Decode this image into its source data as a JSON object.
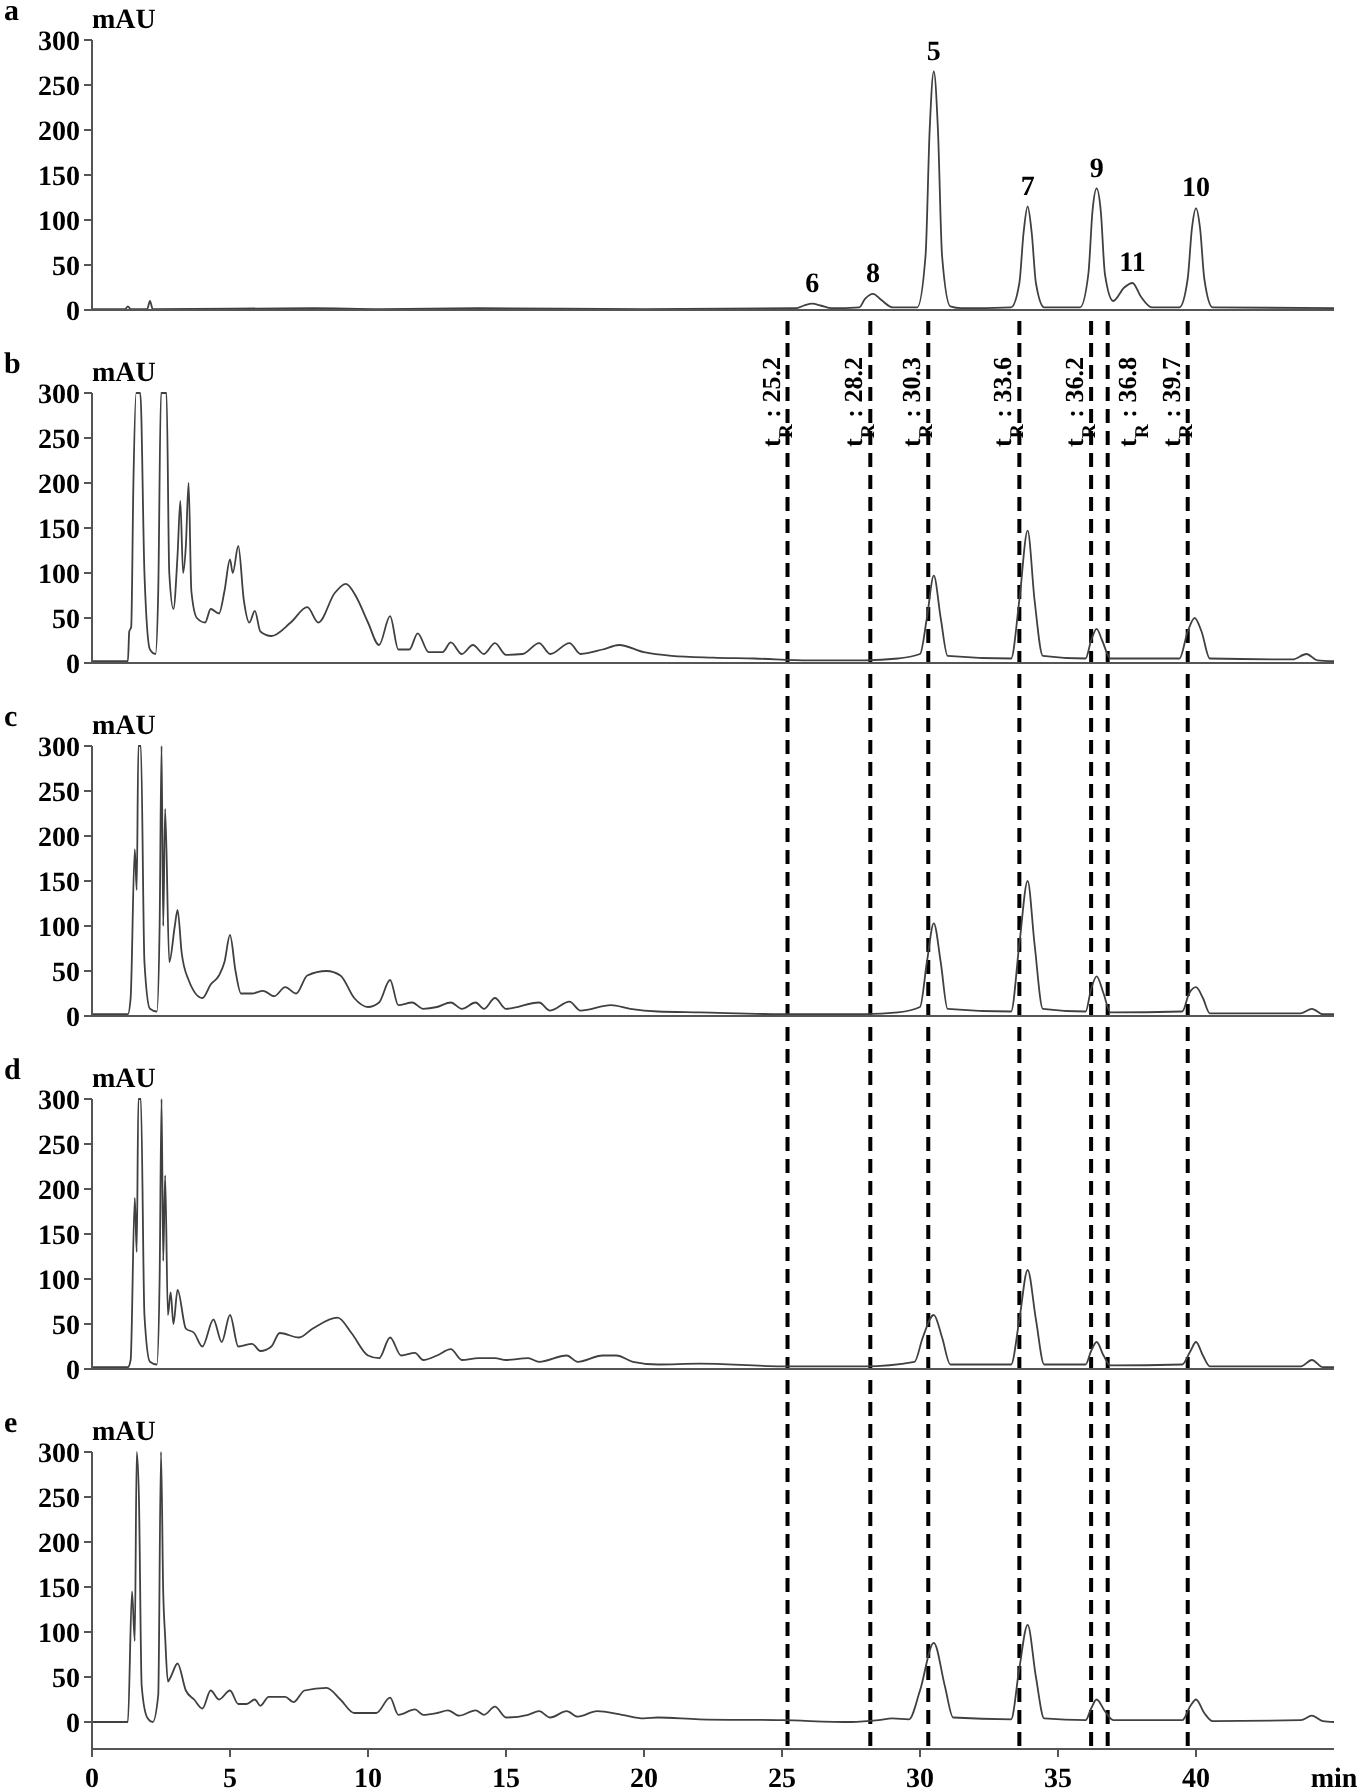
{
  "chart_data": [
    {
      "type": "line",
      "title": "a",
      "ylabel": "mAU",
      "xlim": [
        0,
        45
      ],
      "ylim": [
        0,
        300
      ],
      "yticks": [
        0,
        50,
        100,
        150,
        200,
        250,
        300
      ],
      "tick_labels": "y",
      "x": [
        0,
        1.2,
        1.3,
        1.4,
        2.0,
        2.1,
        2.2,
        8,
        10.5,
        14,
        20,
        25.5,
        25.8,
        26.1,
        26.4,
        26.8,
        27.8,
        28.0,
        28.3,
        28.6,
        29.0,
        29.9,
        30.2,
        30.35,
        30.5,
        30.65,
        30.8,
        31.1,
        31.5,
        33.3,
        33.6,
        33.75,
        33.9,
        34.05,
        34.2,
        34.5,
        35.8,
        36.1,
        36.25,
        36.4,
        36.55,
        36.7,
        37.0,
        37.4,
        37.7,
        38.0,
        38.4,
        39.4,
        39.7,
        39.85,
        40.0,
        40.15,
        40.3,
        40.6,
        45
      ],
      "series": [
        {
          "color": "#404040",
          "values": [
            1,
            1,
            4,
            1,
            1,
            10,
            1,
            2,
            1,
            2,
            1,
            2,
            5,
            7,
            5,
            2,
            3,
            12,
            18,
            11,
            3,
            3,
            60,
            200,
            265,
            200,
            60,
            4,
            2,
            3,
            30,
            85,
            115,
            85,
            30,
            3,
            3,
            40,
            110,
            135,
            110,
            40,
            10,
            25,
            30,
            15,
            3,
            3,
            35,
            90,
            113,
            90,
            35,
            3,
            2
          ]
        }
      ],
      "annotations": [
        {
          "text": "6",
          "x": 26.1,
          "y": 7
        },
        {
          "text": "8",
          "x": 28.3,
          "y": 18
        },
        {
          "text": "5",
          "x": 30.5,
          "y": 265
        },
        {
          "text": "7",
          "x": 33.9,
          "y": 115
        },
        {
          "text": "9",
          "x": 36.4,
          "y": 135
        },
        {
          "text": "11",
          "x": 37.7,
          "y": 30
        },
        {
          "text": "10",
          "x": 40.0,
          "y": 113
        }
      ]
    },
    {
      "type": "line",
      "title": "b",
      "ylabel": "mAU",
      "xlim": [
        0,
        45
      ],
      "ylim": [
        0,
        300
      ],
      "yticks": [
        0,
        50,
        100,
        150,
        200,
        250,
        300
      ],
      "tick_labels": "y",
      "x": [
        0,
        1.3,
        1.35,
        1.42,
        1.5,
        1.6,
        1.75,
        1.9,
        2.1,
        2.3,
        2.4,
        2.5,
        2.7,
        2.8,
        2.95,
        3.1,
        3.2,
        3.3,
        3.4,
        3.5,
        3.6,
        3.8,
        4.1,
        4.3,
        4.6,
        4.8,
        5.0,
        5.1,
        5.3,
        5.5,
        5.7,
        5.9,
        6.1,
        6.5,
        7.2,
        7.8,
        8.2,
        8.8,
        9.2,
        9.6,
        10.0,
        10.4,
        10.8,
        11.1,
        11.5,
        11.8,
        12.2,
        12.7,
        13.0,
        13.4,
        13.8,
        14.2,
        14.6,
        15.0,
        15.6,
        16.2,
        16.6,
        17.3,
        17.7,
        18.5,
        19.1,
        20,
        21,
        22.5,
        24,
        26,
        28,
        29.2,
        30.0,
        30.25,
        30.5,
        30.75,
        31.0,
        33.3,
        33.6,
        33.9,
        34.15,
        34.45,
        36.0,
        36.2,
        36.4,
        36.6,
        36.9,
        39.4,
        39.7,
        39.95,
        40.2,
        40.5,
        43.5,
        44.0,
        44.4,
        45
      ],
      "series": [
        {
          "color": "#404040",
          "values": [
            2,
            2,
            35,
            40,
            200,
            300,
            300,
            100,
            15,
            10,
            80,
            300,
            300,
            100,
            60,
            120,
            180,
            100,
            130,
            200,
            80,
            50,
            45,
            60,
            55,
            80,
            115,
            100,
            130,
            70,
            45,
            58,
            35,
            30,
            45,
            62,
            45,
            78,
            88,
            72,
            45,
            20,
            52,
            15,
            15,
            33,
            12,
            12,
            23,
            10,
            20,
            10,
            22,
            9,
            10,
            22,
            10,
            22,
            10,
            15,
            20,
            12,
            8,
            6,
            5,
            3,
            3,
            5,
            10,
            50,
            97,
            50,
            8,
            5,
            70,
            147,
            70,
            8,
            5,
            25,
            38,
            25,
            5,
            5,
            35,
            50,
            35,
            5,
            4,
            10,
            3,
            2
          ]
        }
      ],
      "ref_lines": [
        {
          "axis": "x",
          "value": 25.2,
          "label": "t$_{R}$ : 25.2",
          "line_style": "dashed",
          "color": "#000000"
        },
        {
          "axis": "x",
          "value": 28.2,
          "label": "t$_{R}$ : 28.2",
          "line_style": "dashed",
          "color": "#000000"
        },
        {
          "axis": "x",
          "value": 30.3,
          "label": "t$_{R}$ : 30.3",
          "line_style": "dashed",
          "color": "#000000"
        },
        {
          "axis": "x",
          "value": 33.6,
          "label": "t$_{R}$ : 33.6",
          "line_style": "dashed",
          "color": "#000000"
        },
        {
          "axis": "x",
          "value": 36.2,
          "label": "t$_{R}$ : 36.2",
          "line_style": "dashed",
          "color": "#000000"
        },
        {
          "axis": "x",
          "value": 36.8,
          "label": "t$_{R}$ : 36.8",
          "line_style": "dashed",
          "color": "#000000"
        },
        {
          "axis": "x",
          "value": 39.7,
          "label": "t$_{R}$ : 39.7",
          "line_style": "dashed",
          "color": "#000000"
        }
      ]
    },
    {
      "type": "line",
      "title": "c",
      "ylabel": "mAU",
      "xlim": [
        0,
        45
      ],
      "ylim": [
        0,
        300
      ],
      "yticks": [
        0,
        50,
        100,
        150,
        200,
        250,
        300
      ],
      "tick_labels": "y",
      "x": [
        0,
        1.3,
        1.4,
        1.55,
        1.62,
        1.68,
        1.77,
        1.9,
        2.1,
        2.35,
        2.45,
        2.52,
        2.58,
        2.65,
        2.8,
        3.0,
        3.1,
        3.25,
        3.5,
        4.0,
        4.3,
        4.6,
        4.8,
        5.0,
        5.2,
        5.4,
        5.8,
        6.2,
        6.6,
        7.0,
        7.4,
        7.8,
        8.5,
        9.0,
        9.5,
        10.0,
        10.4,
        10.8,
        11.1,
        11.6,
        12.0,
        12.5,
        13.0,
        13.4,
        13.9,
        14.2,
        14.6,
        15.0,
        16.2,
        16.6,
        17.3,
        17.7,
        18.8,
        19.5,
        20.5,
        22,
        25,
        28,
        29.2,
        30.0,
        30.25,
        30.5,
        30.75,
        31.0,
        33.3,
        33.6,
        33.9,
        34.15,
        34.45,
        36.0,
        36.2,
        36.4,
        36.65,
        36.9,
        39.5,
        39.75,
        40.0,
        40.25,
        40.5,
        43.8,
        44.2,
        44.6,
        45
      ],
      "series": [
        {
          "color": "#404040",
          "values": [
            2,
            2,
            20,
            185,
            140,
            300,
            300,
            60,
            8,
            5,
            100,
            300,
            100,
            230,
            60,
            100,
            118,
            70,
            40,
            20,
            35,
            45,
            60,
            90,
            50,
            25,
            25,
            28,
            22,
            32,
            25,
            45,
            50,
            45,
            20,
            10,
            15,
            40,
            12,
            15,
            8,
            10,
            15,
            8,
            15,
            8,
            20,
            8,
            15,
            6,
            16,
            6,
            12,
            8,
            5,
            4,
            2,
            2,
            4,
            10,
            60,
            103,
            60,
            8,
            5,
            80,
            150,
            80,
            8,
            5,
            30,
            44,
            25,
            4,
            5,
            25,
            32,
            20,
            3,
            3,
            8,
            2,
            2
          ]
        }
      ],
      "ref_lines": [
        {
          "axis": "x",
          "value": 25.2,
          "line_style": "dashed",
          "color": "#000000"
        },
        {
          "axis": "x",
          "value": 28.2,
          "line_style": "dashed",
          "color": "#000000"
        },
        {
          "axis": "x",
          "value": 30.3,
          "line_style": "dashed",
          "color": "#000000"
        },
        {
          "axis": "x",
          "value": 33.6,
          "line_style": "dashed",
          "color": "#000000"
        },
        {
          "axis": "x",
          "value": 36.2,
          "line_style": "dashed",
          "color": "#000000"
        },
        {
          "axis": "x",
          "value": 36.8,
          "line_style": "dashed",
          "color": "#000000"
        },
        {
          "axis": "x",
          "value": 39.7,
          "line_style": "dashed",
          "color": "#000000"
        }
      ]
    },
    {
      "type": "line",
      "title": "d",
      "ylabel": "mAU",
      "xlim": [
        0,
        45
      ],
      "ylim": [
        0,
        300
      ],
      "yticks": [
        0,
        50,
        100,
        150,
        200,
        250,
        300
      ],
      "tick_labels": "y",
      "x": [
        0,
        1.3,
        1.4,
        1.55,
        1.62,
        1.68,
        1.77,
        1.9,
        2.1,
        2.35,
        2.45,
        2.52,
        2.58,
        2.65,
        2.75,
        2.85,
        2.95,
        3.1,
        3.4,
        3.7,
        4.0,
        4.4,
        4.7,
        5.0,
        5.3,
        5.8,
        6.1,
        6.5,
        6.8,
        7.5,
        8.0,
        8.9,
        9.4,
        10.0,
        10.4,
        10.8,
        11.2,
        11.7,
        12.0,
        12.5,
        13.0,
        13.4,
        14.0,
        14.6,
        15.0,
        15.8,
        16.2,
        17.2,
        17.6,
        18.5,
        19.0,
        19.6,
        20.5,
        22,
        25,
        28,
        29.8,
        30.1,
        30.5,
        30.8,
        31.1,
        33.3,
        33.6,
        33.9,
        34.2,
        34.5,
        36.0,
        36.2,
        36.4,
        36.65,
        36.9,
        39.5,
        39.8,
        40.0,
        40.25,
        40.5,
        43.8,
        44.2,
        44.6,
        45
      ],
      "series": [
        {
          "color": "#404040",
          "values": [
            2,
            2,
            10,
            190,
            130,
            300,
            300,
            60,
            8,
            5,
            100,
            300,
            120,
            215,
            60,
            85,
            50,
            88,
            45,
            40,
            25,
            55,
            30,
            60,
            25,
            28,
            20,
            25,
            40,
            35,
            45,
            57,
            40,
            15,
            12,
            35,
            15,
            18,
            10,
            15,
            22,
            10,
            12,
            12,
            10,
            12,
            8,
            15,
            8,
            15,
            15,
            8,
            5,
            6,
            3,
            3,
            8,
            35,
            60,
            35,
            5,
            5,
            55,
            110,
            55,
            5,
            5,
            20,
            30,
            15,
            4,
            5,
            20,
            30,
            15,
            3,
            3,
            10,
            2,
            2
          ]
        }
      ],
      "ref_lines": [
        {
          "axis": "x",
          "value": 25.2,
          "line_style": "dashed",
          "color": "#000000"
        },
        {
          "axis": "x",
          "value": 28.2,
          "line_style": "dashed",
          "color": "#000000"
        },
        {
          "axis": "x",
          "value": 30.3,
          "line_style": "dashed",
          "color": "#000000"
        },
        {
          "axis": "x",
          "value": 33.6,
          "line_style": "dashed",
          "color": "#000000"
        },
        {
          "axis": "x",
          "value": 36.2,
          "line_style": "dashed",
          "color": "#000000"
        },
        {
          "axis": "x",
          "value": 36.8,
          "line_style": "dashed",
          "color": "#000000"
        },
        {
          "axis": "x",
          "value": 39.7,
          "line_style": "dashed",
          "color": "#000000"
        }
      ]
    },
    {
      "type": "line",
      "title": "e",
      "ylabel": "mAU",
      "xlabel": "min",
      "xlim": [
        0,
        45
      ],
      "ylim": [
        -30,
        300
      ],
      "xticks": [
        0,
        5,
        10,
        15,
        20,
        25,
        30,
        35,
        40
      ],
      "yticks": [
        0,
        50,
        100,
        150,
        200,
        250,
        300
      ],
      "x": [
        0,
        1.3,
        1.45,
        1.55,
        1.62,
        1.7,
        1.8,
        2.0,
        2.2,
        2.4,
        2.5,
        2.58,
        2.65,
        2.75,
        2.85,
        3.1,
        3.4,
        3.7,
        4.0,
        4.3,
        4.6,
        5.0,
        5.3,
        5.6,
        5.9,
        6.1,
        6.4,
        7.0,
        7.3,
        7.7,
        8.5,
        9.0,
        9.5,
        10.3,
        10.8,
        11.1,
        11.7,
        12.0,
        12.5,
        12.9,
        13.3,
        13.9,
        14.2,
        14.6,
        15.0,
        15.8,
        16.2,
        16.6,
        17.2,
        17.6,
        18.3,
        19.2,
        20.0,
        20.5,
        22,
        25,
        27.5,
        28.5,
        29.0,
        29.6,
        30.0,
        30.5,
        30.9,
        31.2,
        33.3,
        33.6,
        33.9,
        34.2,
        34.5,
        36.0,
        36.2,
        36.4,
        36.7,
        37.0,
        39.5,
        39.8,
        40.0,
        40.3,
        40.6,
        43.8,
        44.2,
        44.6,
        45
      ],
      "series": [
        {
          "color": "#404040",
          "values": [
            0,
            0,
            145,
            90,
            300,
            250,
            40,
            5,
            0,
            30,
            300,
            145,
            95,
            45,
            50,
            65,
            35,
            25,
            15,
            35,
            25,
            35,
            20,
            20,
            25,
            18,
            28,
            28,
            22,
            35,
            38,
            25,
            10,
            10,
            27,
            8,
            14,
            8,
            10,
            13,
            7,
            13,
            8,
            17,
            5,
            8,
            12,
            5,
            12,
            6,
            12,
            8,
            4,
            5,
            3,
            2,
            0,
            2,
            4,
            3,
            35,
            88,
            40,
            5,
            3,
            60,
            108,
            50,
            4,
            2,
            15,
            25,
            12,
            2,
            2,
            18,
            25,
            10,
            1,
            2,
            7,
            1,
            0
          ]
        }
      ],
      "ref_lines": [
        {
          "axis": "x",
          "value": 25.2,
          "line_style": "dashed",
          "color": "#000000"
        },
        {
          "axis": "x",
          "value": 28.2,
          "line_style": "dashed",
          "color": "#000000"
        },
        {
          "axis": "x",
          "value": 30.3,
          "line_style": "dashed",
          "color": "#000000"
        },
        {
          "axis": "x",
          "value": 33.6,
          "line_style": "dashed",
          "color": "#000000"
        },
        {
          "axis": "x",
          "value": 36.2,
          "line_style": "dashed",
          "color": "#000000"
        },
        {
          "axis": "x",
          "value": 36.8,
          "line_style": "dashed",
          "color": "#000000"
        },
        {
          "axis": "x",
          "value": 39.7,
          "line_style": "dashed",
          "color": "#000000"
        }
      ]
    }
  ]
}
